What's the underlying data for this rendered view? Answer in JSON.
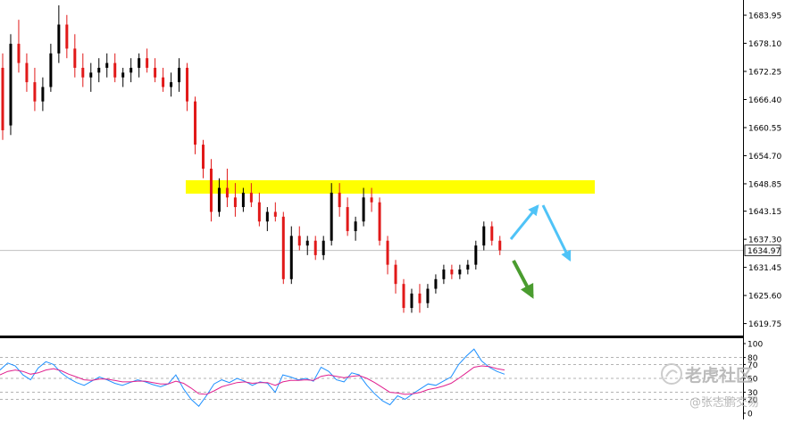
{
  "chart_data": [
    {
      "type": "candlestick",
      "title": "",
      "ylim": [
        1618,
        1686
      ],
      "y_ticks": [
        "1683.95",
        "1678.10",
        "1672.25",
        "1666.40",
        "1660.55",
        "1654.70",
        "1648.85",
        "1643.15",
        "1637.30",
        "1631.45",
        "1625.60",
        "1619.75"
      ],
      "current_price": "1634.97",
      "grid": false,
      "colors": {
        "up": "#000000",
        "down": "#e11919",
        "current_line": "#c0c0c0"
      },
      "candles": [
        [
          1673,
          1676,
          1658,
          1660
        ],
        [
          1661,
          1680,
          1659,
          1678
        ],
        [
          1678,
          1683,
          1672,
          1674
        ],
        [
          1674,
          1676,
          1668,
          1670
        ],
        [
          1670,
          1673,
          1664,
          1666
        ],
        [
          1666,
          1671,
          1664,
          1669
        ],
        [
          1669,
          1678,
          1668,
          1676
        ],
        [
          1676,
          1686,
          1674,
          1682
        ],
        [
          1682,
          1684,
          1675,
          1677
        ],
        [
          1677,
          1680,
          1671,
          1673
        ],
        [
          1673,
          1676,
          1669,
          1671
        ],
        [
          1671,
          1674,
          1668,
          1672
        ],
        [
          1672,
          1675,
          1670,
          1673
        ],
        [
          1673,
          1676,
          1671,
          1674
        ],
        [
          1674,
          1676,
          1670,
          1671
        ],
        [
          1671,
          1673,
          1669,
          1672
        ],
        [
          1672,
          1675,
          1670,
          1673
        ],
        [
          1673,
          1676,
          1671,
          1675
        ],
        [
          1675,
          1677,
          1672,
          1673
        ],
        [
          1673,
          1675,
          1670,
          1671
        ],
        [
          1671,
          1673,
          1668,
          1669
        ],
        [
          1669,
          1672,
          1667,
          1670
        ],
        [
          1670,
          1675,
          1668,
          1673
        ],
        [
          1673,
          1674,
          1664,
          1666
        ],
        [
          1666,
          1667,
          1655,
          1657
        ],
        [
          1657,
          1658,
          1650,
          1652
        ],
        [
          1652,
          1654,
          1641,
          1643
        ],
        [
          1643,
          1650,
          1642,
          1648
        ],
        [
          1648,
          1652,
          1644,
          1646
        ],
        [
          1646,
          1649,
          1642,
          1644
        ],
        [
          1644,
          1648,
          1643,
          1647
        ],
        [
          1647,
          1649,
          1644,
          1645
        ],
        [
          1645,
          1647,
          1640,
          1641
        ],
        [
          1641,
          1644,
          1639,
          1643
        ],
        [
          1643,
          1645,
          1641,
          1642
        ],
        [
          1642,
          1643,
          1628,
          1629
        ],
        [
          1629,
          1640,
          1628,
          1638
        ],
        [
          1638,
          1640,
          1635,
          1636
        ],
        [
          1636,
          1638,
          1634,
          1637
        ],
        [
          1637,
          1638,
          1633,
          1634
        ],
        [
          1634,
          1638,
          1633,
          1637
        ],
        [
          1637,
          1649,
          1636,
          1647
        ],
        [
          1647,
          1649,
          1642,
          1644
        ],
        [
          1644,
          1646,
          1638,
          1639
        ],
        [
          1639,
          1642,
          1637,
          1641
        ],
        [
          1641,
          1648,
          1640,
          1646
        ],
        [
          1646,
          1648,
          1643,
          1645
        ],
        [
          1645,
          1646,
          1636,
          1637
        ],
        [
          1637,
          1638,
          1630,
          1632
        ],
        [
          1632,
          1633,
          1626,
          1628
        ],
        [
          1628,
          1629,
          1622,
          1623
        ],
        [
          1623,
          1627,
          1622,
          1626
        ],
        [
          1626,
          1628,
          1622,
          1624
        ],
        [
          1624,
          1628,
          1623,
          1627
        ],
        [
          1627,
          1630,
          1626,
          1629
        ],
        [
          1629,
          1632,
          1628,
          1631
        ],
        [
          1631,
          1632,
          1629,
          1630
        ],
        [
          1630,
          1632,
          1629,
          1631
        ],
        [
          1631,
          1633,
          1630,
          1632
        ],
        [
          1632,
          1637,
          1631,
          1636
        ],
        [
          1636,
          1641,
          1635,
          1640
        ],
        [
          1640,
          1641,
          1636,
          1637
        ],
        [
          1637,
          1638,
          1634,
          1635
        ]
      ]
    },
    {
      "type": "line",
      "title": "",
      "ylim": [
        0,
        100
      ],
      "y_ticks": [
        "100",
        "80",
        "70",
        "50",
        "30",
        "20",
        "0"
      ],
      "levels": [
        80,
        70,
        50,
        30,
        20
      ],
      "series": [
        {
          "color": "#1e90ff",
          "values": [
            62,
            72,
            68,
            55,
            48,
            65,
            74,
            70,
            58,
            50,
            44,
            40,
            46,
            52,
            48,
            43,
            40,
            44,
            48,
            45,
            41,
            38,
            42,
            55,
            35,
            20,
            10,
            25,
            42,
            48,
            44,
            50,
            46,
            40,
            45,
            43,
            30,
            55,
            52,
            48,
            50,
            46,
            66,
            60,
            48,
            45,
            58,
            55,
            40,
            28,
            18,
            12,
            25,
            20,
            28,
            35,
            42,
            40,
            46,
            52,
            70,
            82,
            92,
            75,
            66,
            60,
            56
          ]
        },
        {
          "color": "#e0208e",
          "values": [
            55,
            60,
            62,
            60,
            56,
            58,
            62,
            64,
            61,
            56,
            52,
            48,
            47,
            49,
            49,
            47,
            45,
            45,
            46,
            46,
            44,
            42,
            42,
            46,
            43,
            36,
            28,
            27,
            32,
            38,
            41,
            44,
            45,
            43,
            44,
            44,
            40,
            45,
            47,
            47,
            48,
            47,
            53,
            55,
            53,
            51,
            53,
            54,
            50,
            44,
            37,
            30,
            29,
            27,
            28,
            30,
            34,
            36,
            39,
            43,
            50,
            58,
            66,
            68,
            67,
            64,
            62
          ]
        }
      ]
    }
  ],
  "annotations": {
    "resistance_zone": {
      "from": 1646.8,
      "to": 1649.6,
      "color": "#ffff00"
    },
    "arrows": [
      {
        "name": "bullish-up-leg",
        "color": "#4fc3f7"
      },
      {
        "name": "bullish-down-leg",
        "color": "#4fc3f7"
      },
      {
        "name": "bearish-arrow",
        "color": "#4a9c2f"
      }
    ]
  },
  "watermark": {
    "brand": "老虎社区",
    "author": "@张志鹏交易"
  }
}
